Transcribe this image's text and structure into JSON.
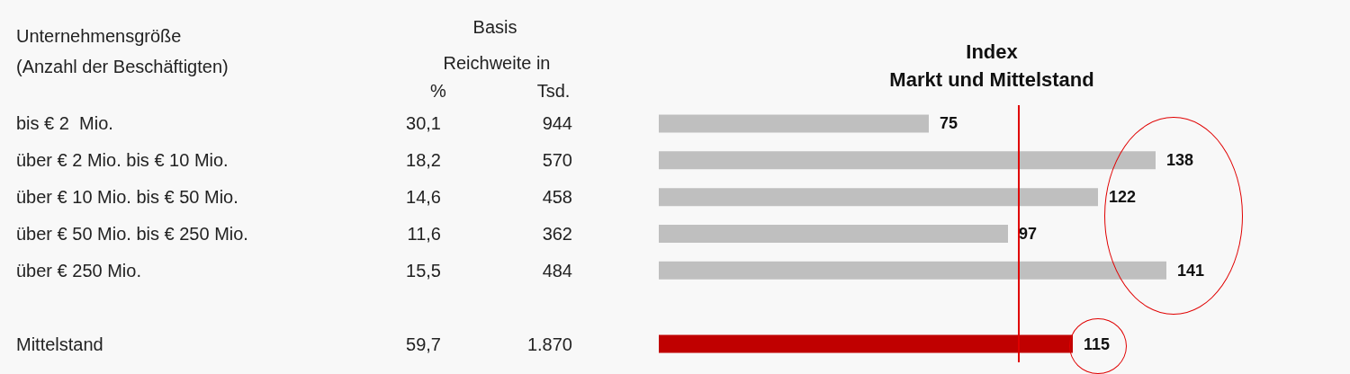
{
  "chart_data": {
    "type": "bar",
    "orientation": "horizontal",
    "title": "Index\nMarkt und Mittelstand",
    "ylabel": "Unternehmensgröße\n(Anzahl der Beschäftigten)",
    "categories": [
      "bis € 2  Mio.",
      "über € 2 Mio. bis € 10 Mio.",
      "über € 10 Mio. bis € 50 Mio.",
      "über € 50 Mio. bis € 250 Mio.",
      "über € 250 Mio.",
      null,
      "Mittelstand"
    ],
    "values": [
      75,
      138,
      122,
      97,
      141,
      null,
      115
    ],
    "colors": [
      "#bfbfbf",
      "#bfbfbf",
      "#bfbfbf",
      "#bfbfbf",
      "#bfbfbf",
      "#bfbfbf",
      "#c00000"
    ],
    "tick_labels": "y",
    "data_labels": true,
    "grid": false,
    "ref_lines": [
      {
        "axis": "x",
        "value": 100,
        "color": "#e00000"
      }
    ],
    "annotations": [
      "Basis",
      "Reichweite in",
      "%",
      "Tsd.",
      "30,1",
      "944",
      "18,2",
      "570",
      "14,6",
      "458",
      "11,6",
      "362",
      "15,5",
      "484",
      "59,7",
      "1.870"
    ]
  }
}
